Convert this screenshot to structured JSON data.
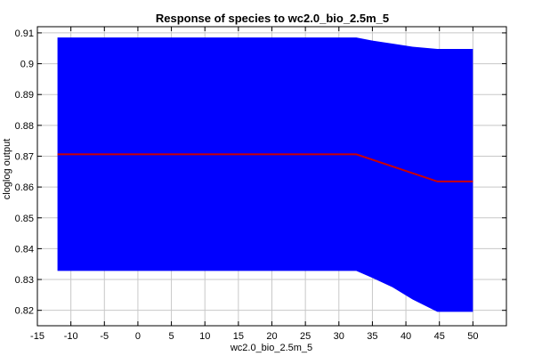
{
  "chart_data": {
    "type": "area",
    "title": "Response of species to wc2.0_bio_2.5m_5",
    "xlabel": "wc2.0_bio_2.5m_5",
    "ylabel": "cloglog output",
    "xlim": [
      -15,
      55
    ],
    "ylim": [
      0.815,
      0.912
    ],
    "xticks": [
      -15,
      -10,
      -5,
      0,
      5,
      10,
      15,
      20,
      25,
      30,
      35,
      40,
      45,
      50
    ],
    "yticks": [
      0.82,
      0.83,
      0.84,
      0.85,
      0.86,
      0.87,
      0.88,
      0.89,
      0.9,
      0.91
    ],
    "ytick_labels": [
      "0.82",
      "0.83",
      "0.84",
      "0.85",
      "0.86",
      "0.87",
      "0.88",
      "0.89",
      "0.9",
      "0.91"
    ],
    "grid": true,
    "colors": {
      "band": "#0000ff",
      "mean": "#cc0000"
    },
    "series": [
      {
        "role": "band",
        "x": [
          -12,
          32.6,
          35,
          38,
          41,
          44.7,
          50
        ],
        "upper": [
          0.9085,
          0.9085,
          0.9075,
          0.9065,
          0.9055,
          0.9048,
          0.9048
        ],
        "lower": [
          0.8328,
          0.8328,
          0.8305,
          0.8275,
          0.8235,
          0.8195,
          0.8195
        ]
      },
      {
        "role": "mean",
        "x": [
          -12,
          32.6,
          44.7,
          50
        ],
        "values": [
          0.8706,
          0.8706,
          0.8618,
          0.8618
        ]
      }
    ]
  }
}
